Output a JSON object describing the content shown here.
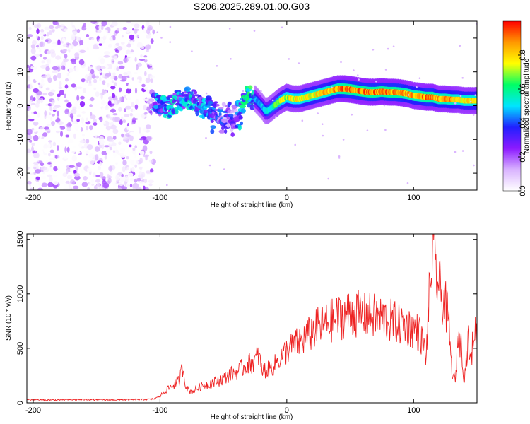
{
  "figure_title": "S206.2025.289.01.00.G03",
  "chart_data": [
    {
      "type": "heatmap",
      "title": "S206.2025.289.01.00.G03",
      "xlabel": "Height of straight line (km)",
      "ylabel": "Frequency (Hz)",
      "xlim": [
        -205,
        150
      ],
      "ylim": [
        -25,
        25
      ],
      "xticks": [
        -200,
        -100,
        0,
        100
      ],
      "yticks": [
        -20,
        -10,
        0,
        10,
        20
      ],
      "colorbar": {
        "label": "Normalized spectral amplitude",
        "range": [
          0,
          1
        ],
        "ticks": [
          0.0,
          0.2,
          0.4,
          0.6,
          0.8
        ],
        "tick_labels": [
          "0.0",
          "0.2",
          "0.4",
          "0.6",
          "0.8"
        ],
        "colors": [
          "#ffffff",
          "#d9b3ff",
          "#8c1aff",
          "#2020ff",
          "#00e5ff",
          "#00ff66",
          "#ffff00",
          "#ff9900",
          "#ff0000"
        ]
      },
      "noise_region": {
        "x_range": [
          -205,
          -105
        ],
        "freq_range": [
          -25,
          25
        ],
        "amplitude": [
          0.0,
          0.25
        ]
      },
      "ridge": {
        "x": [
          -105,
          -100,
          -95,
          -90,
          -85,
          -80,
          -75,
          -70,
          -65,
          -60,
          -55,
          -50,
          -45,
          -40,
          -35,
          -30,
          -25,
          -20,
          -17,
          -15,
          -10,
          -5,
          0,
          5,
          10,
          15,
          20,
          25,
          30,
          35,
          40,
          45,
          50,
          55,
          60,
          65,
          70,
          75,
          80,
          85,
          90,
          95,
          100,
          105,
          110,
          115,
          120,
          125,
          130,
          135,
          140,
          145,
          150
        ],
        "frequency": [
          1.0,
          0.0,
          -1.0,
          0.5,
          1.5,
          2.5,
          2.0,
          0.5,
          -1.0,
          -0.5,
          0.5,
          -1.5,
          -2.0,
          -1.5,
          1.0,
          3.0,
          2.0,
          0.0,
          -1.5,
          -1.5,
          0.0,
          1.5,
          2.5,
          2.0,
          2.0,
          2.5,
          3.0,
          3.5,
          4.0,
          4.5,
          5.0,
          5.0,
          4.8,
          4.5,
          4.2,
          4.0,
          4.0,
          4.2,
          4.0,
          4.0,
          3.8,
          3.5,
          3.0,
          2.8,
          2.5,
          2.5,
          2.0,
          2.0,
          1.8,
          1.8,
          1.5,
          1.5,
          1.5
        ],
        "amplitude": [
          0.35,
          0.4,
          0.45,
          0.45,
          0.4,
          0.4,
          0.45,
          0.4,
          0.4,
          0.45,
          0.35,
          0.3,
          0.3,
          0.3,
          0.5,
          0.55,
          0.5,
          0.5,
          0.55,
          0.6,
          0.65,
          0.75,
          0.8,
          0.8,
          0.8,
          0.85,
          0.85,
          0.85,
          0.85,
          0.9,
          0.9,
          0.95,
          0.95,
          0.95,
          0.95,
          0.95,
          0.95,
          0.95,
          0.95,
          0.95,
          0.95,
          0.9,
          0.9,
          0.9,
          0.95,
          0.95,
          0.9,
          0.9,
          0.9,
          0.85,
          0.85,
          0.85,
          0.85
        ]
      }
    },
    {
      "type": "line",
      "xlabel": "Height of straight line (km)",
      "ylabel": "SNR (10 * v/v)",
      "xlim": [
        -205,
        150
      ],
      "ylim": [
        0,
        1550
      ],
      "xticks": [
        -200,
        -100,
        0,
        100
      ],
      "yticks": [
        0,
        500,
        1000,
        1500
      ],
      "series": [
        {
          "name": "SNR",
          "color": "#ee2222",
          "x": [
            -205,
            -190,
            -175,
            -160,
            -145,
            -130,
            -115,
            -105,
            -100,
            -95,
            -90,
            -85,
            -82,
            -80,
            -78,
            -75,
            -70,
            -65,
            -60,
            -55,
            -50,
            -45,
            -40,
            -35,
            -30,
            -25,
            -22,
            -20,
            -15,
            -10,
            -5,
            0,
            5,
            10,
            15,
            20,
            25,
            30,
            35,
            40,
            45,
            50,
            55,
            60,
            65,
            70,
            75,
            80,
            85,
            90,
            95,
            100,
            105,
            110,
            112,
            115,
            118,
            120,
            125,
            128,
            130,
            133,
            135,
            138,
            140,
            143,
            145,
            148,
            150
          ],
          "y": [
            30,
            25,
            28,
            30,
            26,
            28,
            30,
            35,
            60,
            120,
            160,
            200,
            330,
            180,
            120,
            100,
            140,
            160,
            180,
            200,
            220,
            260,
            280,
            320,
            360,
            380,
            450,
            300,
            300,
            340,
            420,
            480,
            520,
            560,
            600,
            650,
            700,
            720,
            750,
            780,
            800,
            820,
            820,
            800,
            800,
            790,
            780,
            760,
            740,
            720,
            700,
            680,
            640,
            420,
            900,
            1380,
            1200,
            1050,
            900,
            700,
            300,
            180,
            650,
            500,
            200,
            600,
            350,
            700,
            600
          ]
        }
      ]
    }
  ]
}
